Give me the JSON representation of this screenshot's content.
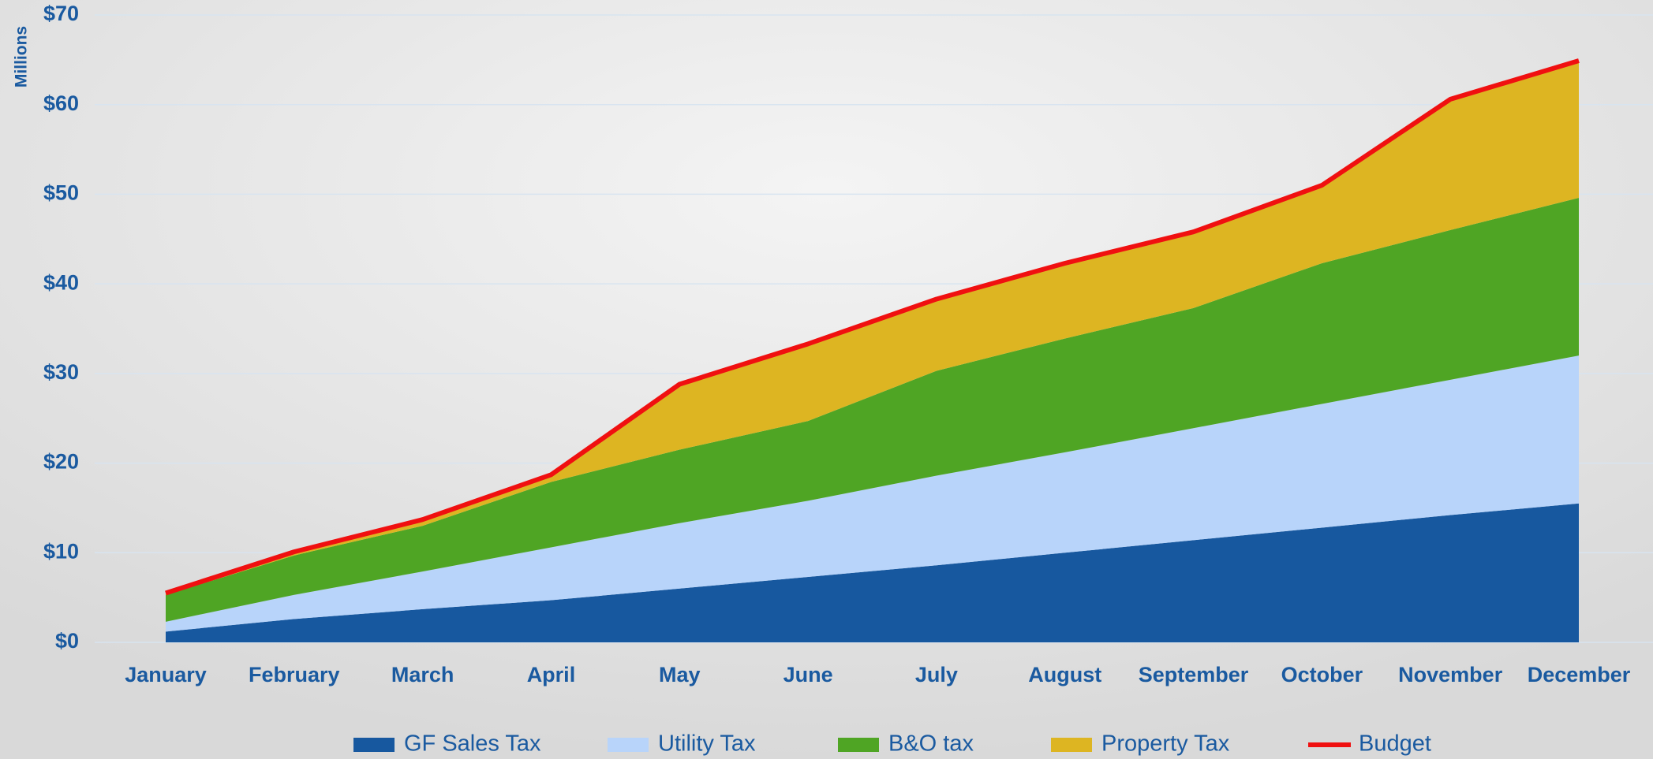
{
  "chart_data": {
    "type": "stacked-area-line",
    "y_axis_label": "Millions",
    "categories": [
      "January",
      "February",
      "March",
      "April",
      "May",
      "June",
      "July",
      "August",
      "September",
      "October",
      "November",
      "December"
    ],
    "series": [
      {
        "name": "GF Sales Tax",
        "color": "#17589f",
        "values": [
          1.2,
          2.6,
          3.7,
          4.7,
          6.0,
          7.3,
          8.6,
          10.0,
          11.4,
          12.8,
          14.2,
          15.5
        ]
      },
      {
        "name": "Utility Tax",
        "color": "#b8d4fa",
        "values": [
          1.1,
          2.7,
          4.2,
          5.9,
          7.3,
          8.5,
          10.0,
          11.2,
          12.5,
          13.8,
          15.1,
          16.5
        ]
      },
      {
        "name": "B&O tax",
        "color": "#4fa524",
        "values": [
          3.0,
          4.4,
          5.1,
          7.3,
          8.2,
          8.9,
          11.7,
          12.7,
          13.4,
          15.7,
          16.7,
          17.6
        ]
      },
      {
        "name": "Property Tax",
        "color": "#ddb522",
        "values": [
          0.2,
          0.4,
          0.7,
          0.8,
          7.3,
          8.6,
          8.0,
          8.4,
          8.5,
          8.7,
          14.6,
          15.3
        ]
      },
      {
        "name": "Budget",
        "color": "#f01010",
        "type": "line",
        "values": [
          5.5,
          10.1,
          13.7,
          18.7,
          28.8,
          33.3,
          38.3,
          42.3,
          45.8,
          51.0,
          60.6,
          64.9
        ]
      }
    ],
    "ylim": [
      0,
      70
    ],
    "yticks": [
      {
        "value": 0,
        "label": "$0"
      },
      {
        "value": 10,
        "label": "$10"
      },
      {
        "value": 20,
        "label": "$20"
      },
      {
        "value": 30,
        "label": "$30"
      },
      {
        "value": 40,
        "label": "$40"
      },
      {
        "value": 50,
        "label": "$50"
      },
      {
        "value": 60,
        "label": "$60"
      },
      {
        "value": 70,
        "label": "$70"
      }
    ],
    "grid": true
  }
}
